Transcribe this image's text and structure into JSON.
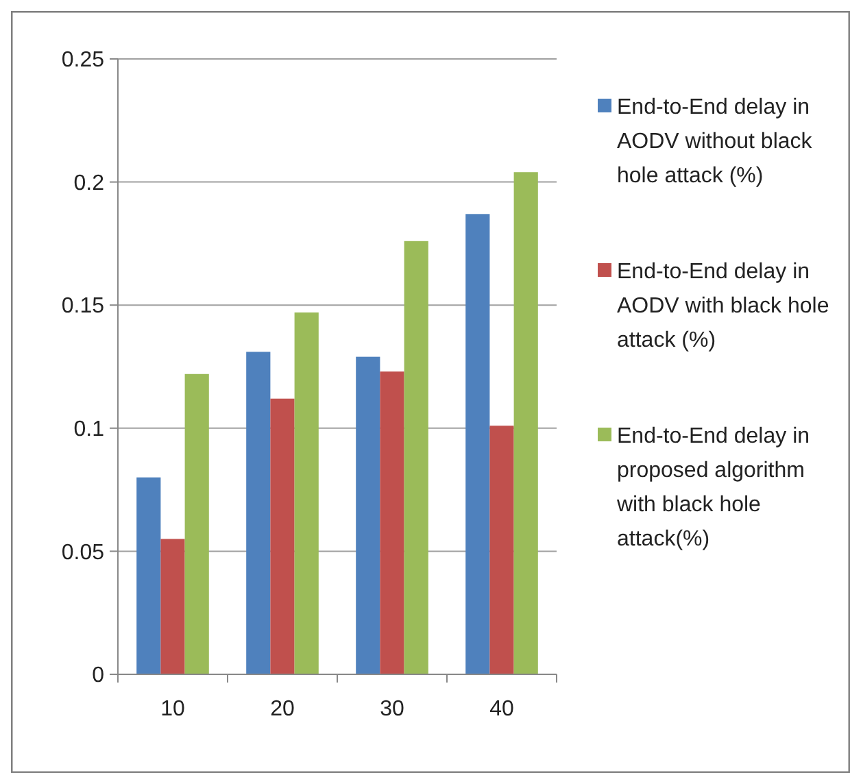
{
  "chart_data": {
    "type": "bar",
    "categories": [
      "10",
      "20",
      "30",
      "40"
    ],
    "series": [
      {
        "name": "End-to-End delay in AODV without black hole attack (%)",
        "color": "#4f81bd",
        "values": [
          0.08,
          0.131,
          0.129,
          0.187
        ]
      },
      {
        "name": "End-to-End delay in AODV with black hole attack (%)",
        "color": "#c0504d",
        "values": [
          0.055,
          0.112,
          0.123,
          0.101
        ]
      },
      {
        "name": "End-to-End delay in proposed algorithm with black hole attack(%)",
        "color": "#9bbb59",
        "values": [
          0.122,
          0.147,
          0.176,
          0.204
        ]
      }
    ],
    "ylim": [
      0,
      0.25
    ],
    "yticks": [
      0,
      0.05,
      0.1,
      0.15,
      0.2,
      0.25
    ],
    "grid": "y",
    "legend": "right"
  }
}
